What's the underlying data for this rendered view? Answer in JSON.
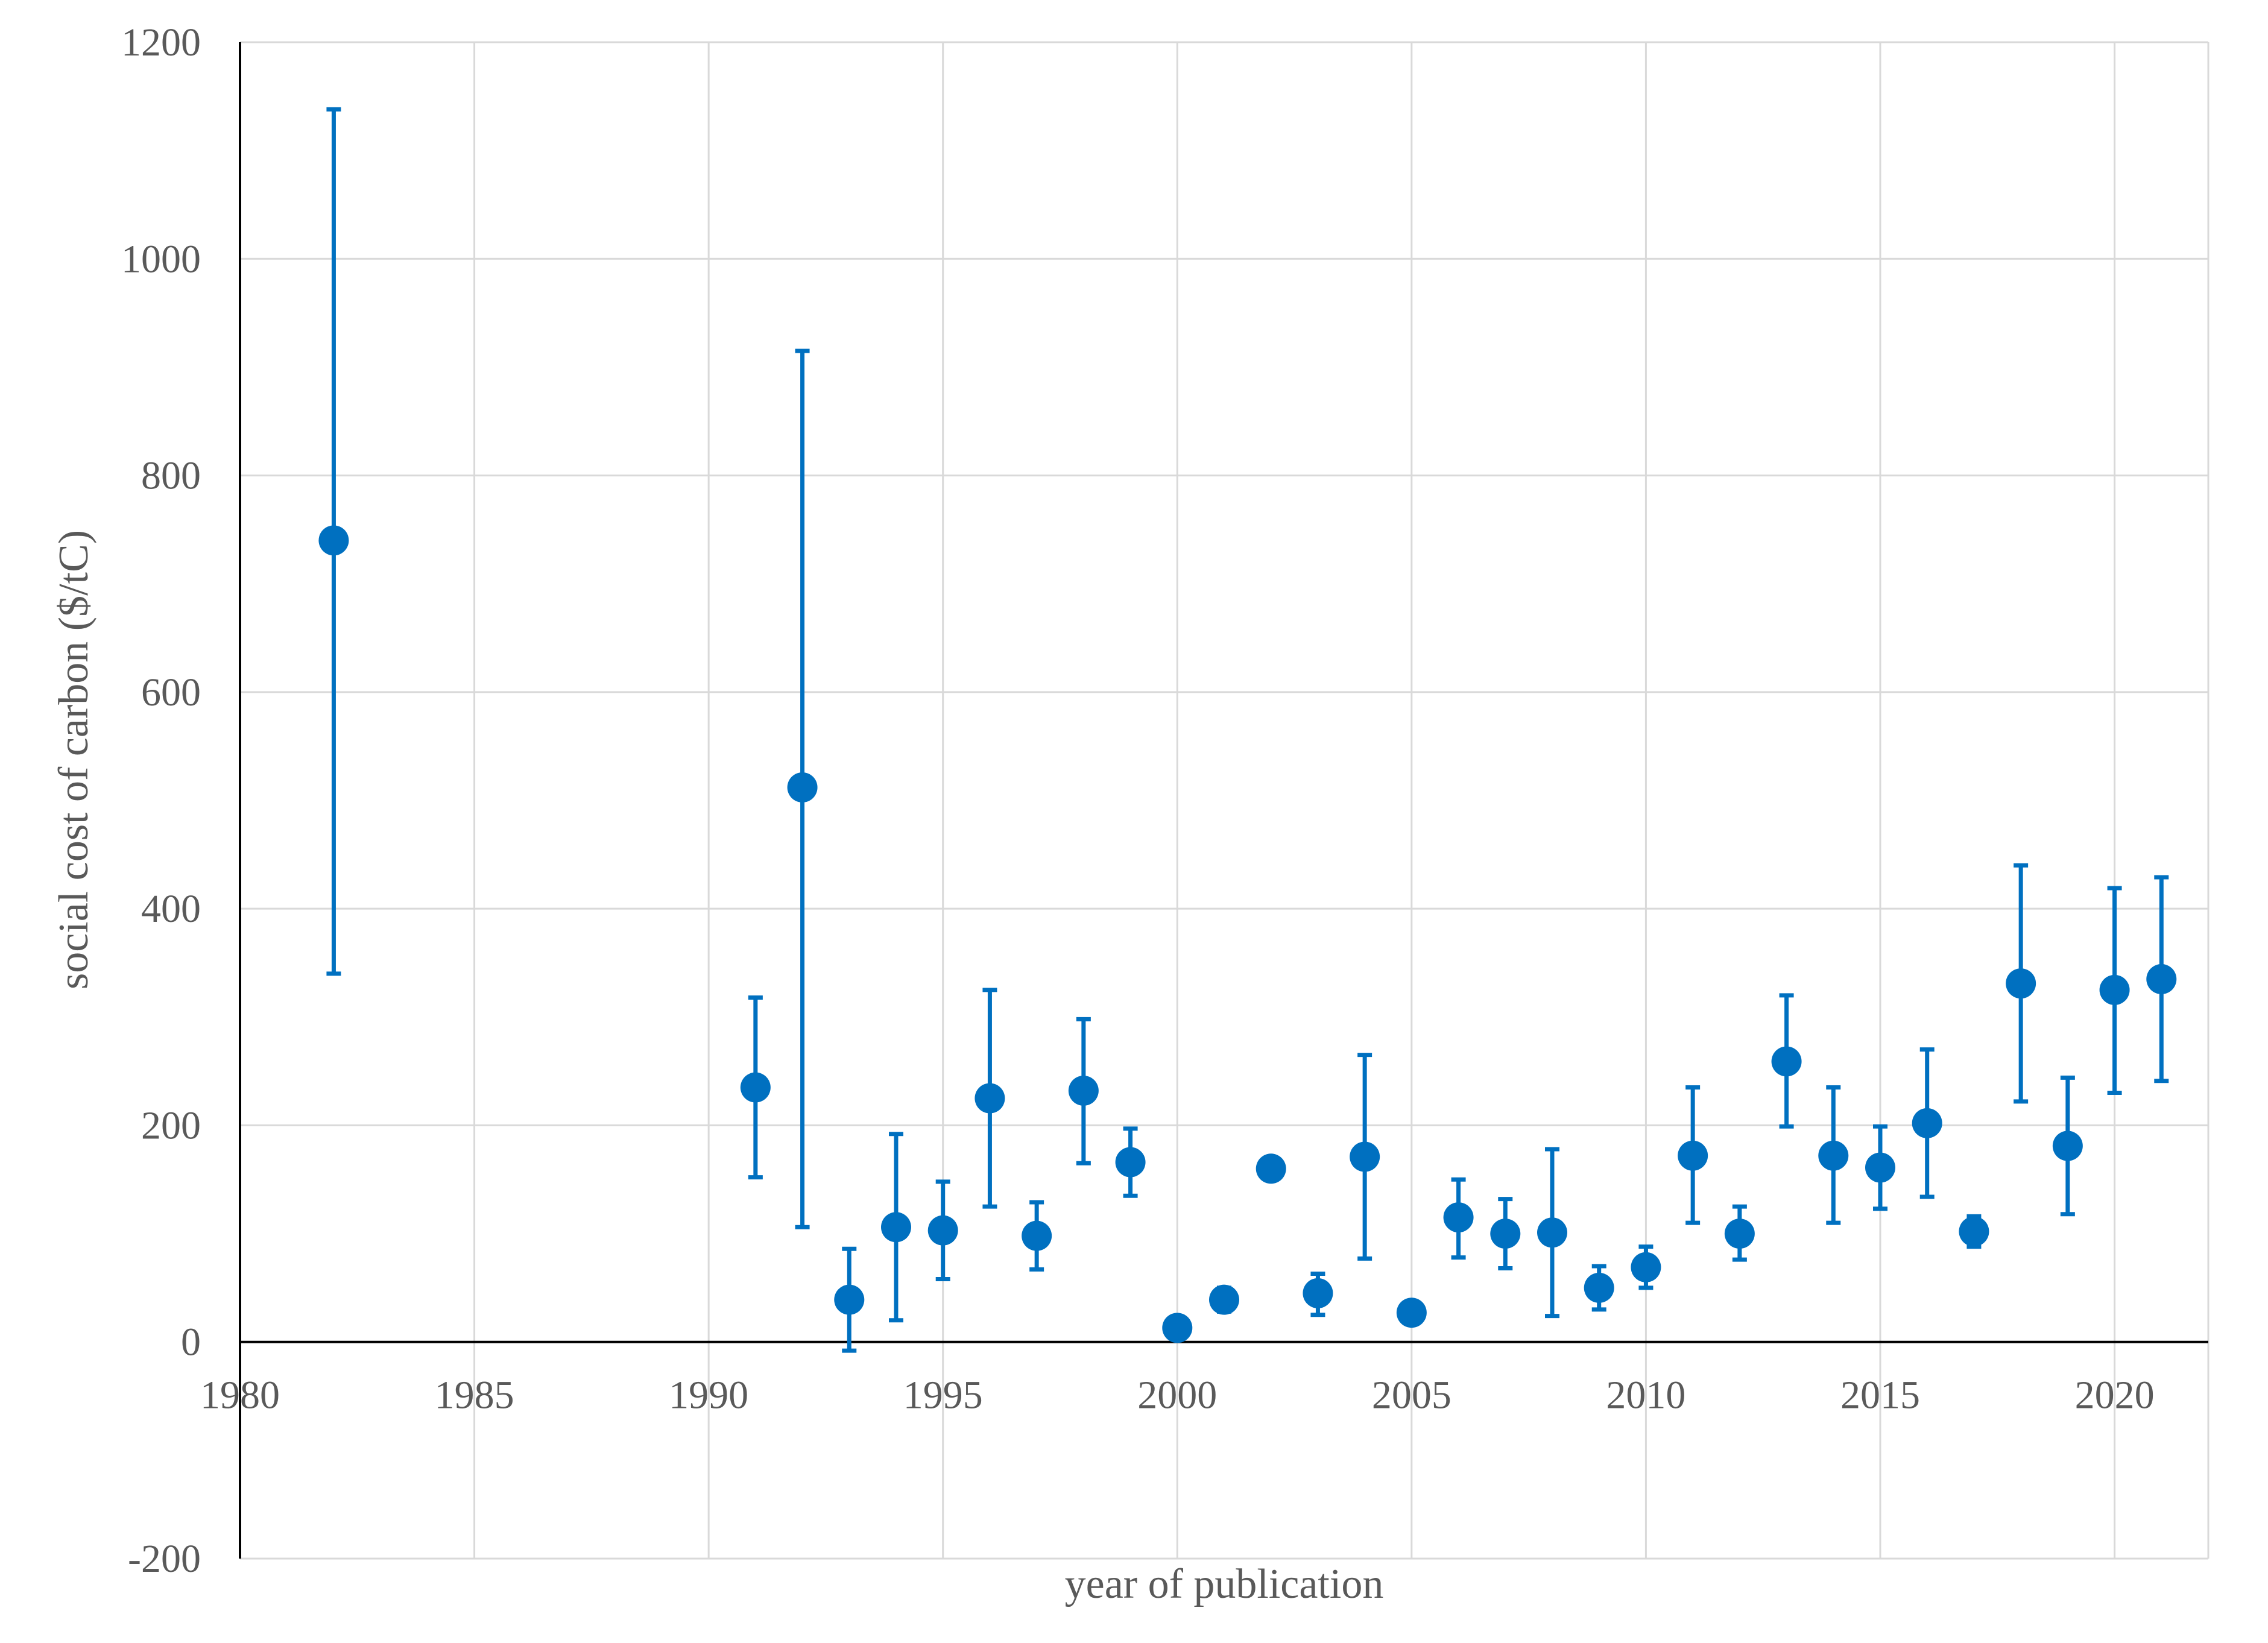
{
  "chart_data": {
    "type": "scatter",
    "title": "",
    "xlabel": "year of publication",
    "ylabel": "social cost of carbon ($/tC)",
    "xlim": [
      1980,
      2022
    ],
    "ylim": [
      -200,
      1200
    ],
    "x_ticks": [
      1980,
      1985,
      1990,
      1995,
      2000,
      2005,
      2010,
      2015,
      2020
    ],
    "y_ticks": [
      -200,
      0,
      200,
      400,
      600,
      800,
      1000,
      1200
    ],
    "grid": true,
    "legend": "none",
    "color": "#0070C0",
    "series": [
      {
        "points": [
          {
            "x": 1982,
            "y": 740,
            "lo": 340,
            "hi": 1138
          },
          {
            "x": 1991,
            "y": 235,
            "lo": 152,
            "hi": 318
          },
          {
            "x": 1992,
            "y": 512,
            "lo": 106,
            "hi": 915
          },
          {
            "x": 1993,
            "y": 39,
            "lo": -8,
            "hi": 86
          },
          {
            "x": 1994,
            "y": 106,
            "lo": 20,
            "hi": 192
          },
          {
            "x": 1995,
            "y": 103,
            "lo": 58,
            "hi": 148
          },
          {
            "x": 1996,
            "y": 225,
            "lo": 125,
            "hi": 325
          },
          {
            "x": 1997,
            "y": 98,
            "lo": 67,
            "hi": 129
          },
          {
            "x": 1998,
            "y": 232,
            "lo": 165,
            "hi": 298
          },
          {
            "x": 1999,
            "y": 166,
            "lo": 135,
            "hi": 197
          },
          {
            "x": 2000,
            "y": 13
          },
          {
            "x": 2001,
            "y": 39,
            "lo": 28,
            "hi": 50
          },
          {
            "x": 2002,
            "y": 160
          },
          {
            "x": 2003,
            "y": 45,
            "lo": 25,
            "hi": 63
          },
          {
            "x": 2004,
            "y": 171,
            "lo": 77,
            "hi": 265
          },
          {
            "x": 2005,
            "y": 27
          },
          {
            "x": 2006,
            "y": 115,
            "lo": 78,
            "hi": 150
          },
          {
            "x": 2007,
            "y": 100,
            "lo": 68,
            "hi": 132
          },
          {
            "x": 2008,
            "y": 101,
            "lo": 24,
            "hi": 178
          },
          {
            "x": 2009,
            "y": 50,
            "lo": 30,
            "hi": 70
          },
          {
            "x": 2010,
            "y": 69,
            "lo": 50,
            "hi": 88
          },
          {
            "x": 2011,
            "y": 172,
            "lo": 110,
            "hi": 235
          },
          {
            "x": 2012,
            "y": 100,
            "lo": 76,
            "hi": 125
          },
          {
            "x": 2013,
            "y": 259,
            "lo": 199,
            "hi": 320
          },
          {
            "x": 2014,
            "y": 172,
            "lo": 110,
            "hi": 235
          },
          {
            "x": 2015,
            "y": 161,
            "lo": 123,
            "hi": 199
          },
          {
            "x": 2016,
            "y": 202,
            "lo": 134,
            "hi": 270
          },
          {
            "x": 2017,
            "y": 102,
            "lo": 88,
            "hi": 116
          },
          {
            "x": 2018,
            "y": 331,
            "lo": 222,
            "hi": 440
          },
          {
            "x": 2019,
            "y": 181,
            "lo": 118,
            "hi": 244
          },
          {
            "x": 2020,
            "y": 325,
            "lo": 230,
            "hi": 419
          },
          {
            "x": 2021,
            "y": 335,
            "lo": 241,
            "hi": 429
          }
        ]
      }
    ]
  }
}
